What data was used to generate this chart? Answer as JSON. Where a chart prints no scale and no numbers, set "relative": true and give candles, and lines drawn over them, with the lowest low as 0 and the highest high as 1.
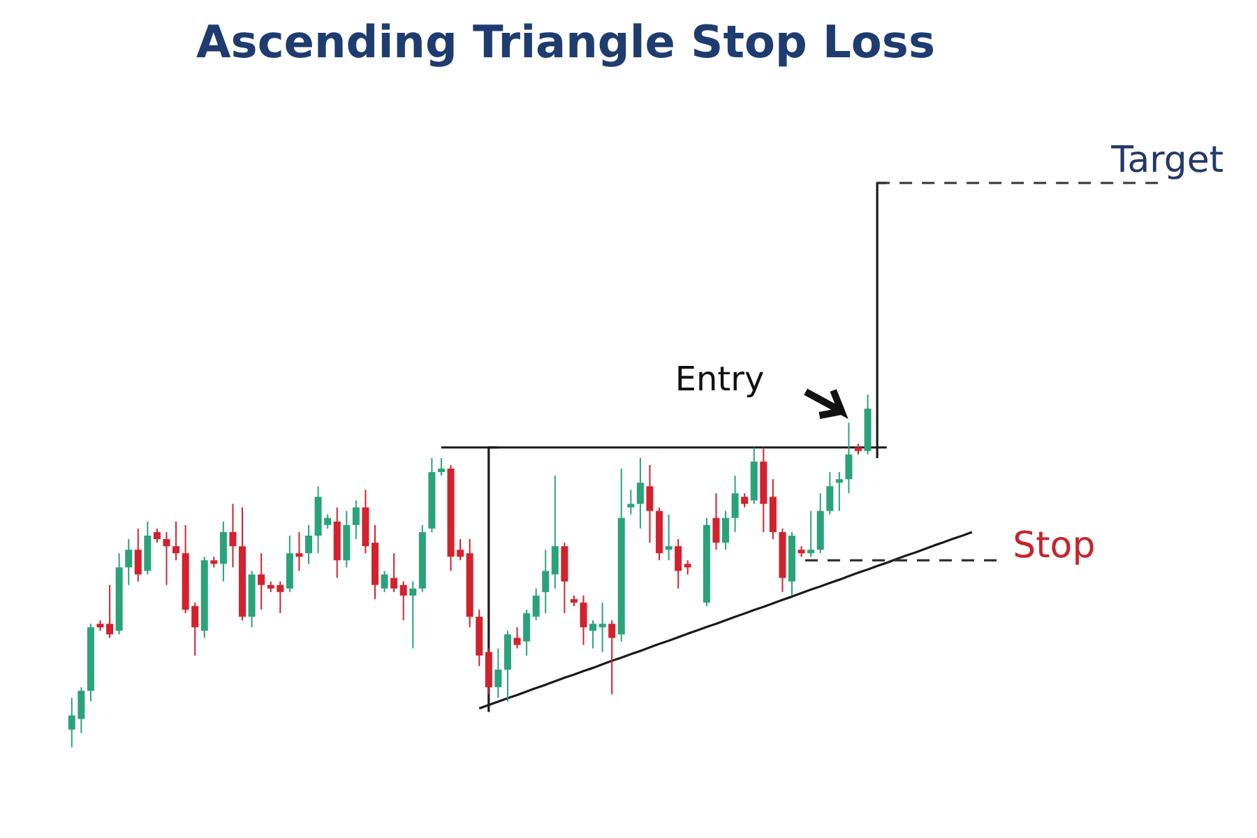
{
  "chart_data": {
    "type": "candlestick",
    "title": "Ascending Triangle Stop Loss",
    "relative": true,
    "tick_labels": false,
    "categories": [
      null,
      null,
      null,
      null,
      null,
      null,
      null,
      null,
      null,
      null,
      null,
      null,
      null,
      null,
      null,
      null,
      null,
      null,
      null,
      null,
      null,
      null,
      null,
      null,
      null,
      null,
      null,
      null,
      null,
      null,
      null,
      null,
      null,
      null,
      null,
      null,
      null,
      null,
      null,
      null,
      null,
      null,
      null,
      null,
      null,
      null,
      null,
      null,
      null,
      null,
      null,
      null,
      null,
      null,
      null,
      null,
      null,
      null,
      null,
      null,
      null,
      null,
      null,
      null,
      null,
      null,
      null,
      null,
      null,
      null,
      null,
      null,
      null,
      null,
      null,
      null,
      null,
      null,
      null,
      null,
      null,
      null,
      null,
      null,
      null,
      null,
      null,
      null,
      null,
      null,
      null,
      null,
      null,
      null,
      null,
      null,
      null,
      null,
      null,
      null,
      null,
      null,
      null,
      null,
      null,
      null,
      null,
      null,
      null,
      null,
      null,
      null,
      null,
      null,
      null,
      null
    ],
    "ohlc": [
      [
        0.05,
        0.14,
        0,
        0.09
      ],
      [
        0.08,
        0.17,
        0.04,
        0.16
      ],
      [
        0.16,
        0.35,
        0.13,
        0.34
      ],
      [
        0.35,
        0.36,
        0.33,
        0.34
      ],
      [
        0.35,
        0.46,
        0.31,
        0.32
      ],
      [
        0.33,
        0.55,
        0.32,
        0.51
      ],
      [
        0.51,
        0.59,
        0.46,
        0.56
      ],
      [
        0.56,
        0.62,
        0.47,
        0.49
      ],
      [
        0.5,
        0.64,
        0.49,
        0.6
      ],
      [
        0.61,
        0.62,
        0.58,
        0.59
      ],
      [
        0.59,
        0.61,
        0.46,
        0.57
      ],
      [
        0.57,
        0.64,
        0.53,
        0.55
      ],
      [
        0.55,
        0.63,
        0.38,
        0.39
      ],
      [
        0.4,
        0.41,
        0.26,
        0.34
      ],
      [
        0.33,
        0.54,
        0.31,
        0.53
      ],
      [
        0.53,
        0.54,
        0.51,
        0.52
      ],
      [
        0.52,
        0.64,
        0.47,
        0.61
      ],
      [
        0.61,
        0.69,
        0.51,
        0.57
      ],
      [
        0.57,
        0.68,
        0.36,
        0.37
      ],
      [
        0.37,
        0.5,
        0.34,
        0.49
      ],
      [
        0.49,
        0.55,
        0.39,
        0.46
      ],
      [
        0.46,
        0.47,
        0.44,
        0.45
      ],
      [
        0.46,
        0.47,
        0.38,
        0.44
      ],
      [
        0.45,
        0.6,
        0.44,
        0.55
      ],
      [
        0.55,
        0.61,
        0.5,
        0.54
      ],
      [
        0.55,
        0.63,
        0.52,
        0.6
      ],
      [
        0.6,
        0.74,
        0.55,
        0.71
      ],
      [
        0.63,
        0.66,
        0.62,
        0.65
      ],
      [
        0.64,
        0.68,
        0.48,
        0.53
      ],
      [
        0.53,
        0.67,
        0.51,
        0.63
      ],
      [
        0.63,
        0.7,
        0.59,
        0.68
      ],
      [
        0.68,
        0.73,
        0.55,
        0.57
      ],
      [
        0.58,
        0.63,
        0.42,
        0.46
      ],
      [
        0.45,
        0.5,
        0.44,
        0.49
      ],
      [
        0.48,
        0.55,
        0.44,
        0.45
      ],
      [
        0.46,
        0.47,
        0.36,
        0.43
      ],
      [
        0.43,
        0.47,
        0.28,
        0.45
      ],
      [
        0.45,
        0.63,
        0.44,
        0.61
      ],
      [
        0.62,
        0.82,
        0.61,
        0.78
      ],
      [
        0.78,
        0.82,
        0.77,
        0.79
      ],
      [
        0.79,
        0.8,
        0.5,
        0.54
      ],
      [
        0.56,
        0.59,
        0.53,
        0.54
      ],
      [
        0.55,
        0.59,
        0.34,
        0.37
      ],
      [
        0.37,
        0.39,
        0.23,
        0.26
      ],
      [
        0.27,
        0.28,
        0.15,
        0.17
      ],
      [
        0.17,
        0.28,
        0.14,
        0.22
      ],
      [
        0.22,
        0.33,
        0.13,
        0.32
      ],
      [
        0.31,
        0.34,
        0.28,
        0.29
      ],
      [
        0.3,
        0.39,
        0.26,
        0.38
      ],
      [
        0.37,
        0.45,
        0.36,
        0.43
      ],
      [
        0.44,
        0.56,
        0.38,
        0.5
      ],
      [
        0.49,
        0.77,
        0.45,
        0.57
      ],
      [
        0.57,
        0.58,
        0.38,
        0.47
      ],
      [
        0.42,
        0.43,
        0.4,
        0.41
      ],
      [
        0.41,
        0.43,
        0.29,
        0.34
      ],
      [
        0.33,
        0.36,
        0.28,
        0.35
      ],
      [
        0.34,
        0.41,
        0.27,
        0.35
      ],
      [
        0.35,
        0.36,
        0.15,
        0.31
      ],
      [
        0.32,
        0.79,
        0.3,
        0.65
      ],
      [
        0.68,
        0.73,
        0.66,
        0.69
      ],
      [
        0.69,
        0.82,
        0.62,
        0.75
      ],
      [
        0.74,
        0.8,
        0.58,
        0.67
      ],
      [
        0.67,
        0.68,
        0.53,
        0.55
      ],
      [
        0.56,
        0.66,
        0.53,
        0.57
      ],
      [
        0.57,
        0.59,
        0.45,
        0.5
      ],
      [
        0.52,
        0.53,
        0.49,
        0.51
      ],
      null,
      [
        0.41,
        0.65,
        0.4,
        0.63
      ],
      [
        0.65,
        0.72,
        0.56,
        0.58
      ],
      [
        0.58,
        0.67,
        0.56,
        0.65
      ],
      [
        0.65,
        0.77,
        0.61,
        0.72
      ],
      [
        0.71,
        0.72,
        0.68,
        0.69
      ],
      [
        0.7,
        0.85,
        0.69,
        0.81
      ],
      [
        0.81,
        0.85,
        0.61,
        0.69
      ],
      [
        0.71,
        0.76,
        0.59,
        0.61
      ],
      [
        0.61,
        0.62,
        0.44,
        0.48
      ],
      [
        0.47,
        0.61,
        0.43,
        0.6
      ],
      [
        0.56,
        0.57,
        0.54,
        0.55
      ],
      [
        0.55,
        0.67,
        0.54,
        0.56
      ],
      [
        0.56,
        0.72,
        0.55,
        0.67
      ],
      [
        0.67,
        0.78,
        0.66,
        0.74
      ],
      [
        0.75,
        0.78,
        0.67,
        0.76
      ],
      [
        0.76,
        0.92,
        0.72,
        0.83
      ],
      [
        0.85,
        0.86,
        0.83,
        0.84
      ],
      [
        0.84,
        1,
        0.83,
        0.96
      ],
      null,
      null,
      null,
      null,
      null,
      null,
      null,
      null,
      null,
      null,
      null,
      null,
      null,
      null,
      null,
      null,
      null,
      null,
      null,
      null,
      null,
      null,
      null,
      null,
      null,
      null,
      null,
      null,
      null,
      null,
      null
    ],
    "colors": [
      "#2aa37a",
      "#2aa37a",
      "#2aa37a",
      "#d3212d",
      "#d3212d",
      "#2aa37a",
      "#2aa37a",
      "#d3212d",
      "#2aa37a",
      "#d3212d",
      "#d3212d",
      "#d3212d",
      "#d3212d",
      "#d3212d",
      "#2aa37a",
      "#d3212d",
      "#2aa37a",
      "#d3212d",
      "#d3212d",
      "#2aa37a",
      "#d3212d",
      "#d3212d",
      "#d3212d",
      "#2aa37a",
      "#d3212d",
      "#2aa37a",
      "#2aa37a",
      "#2aa37a",
      "#d3212d",
      "#2aa37a",
      "#2aa37a",
      "#d3212d",
      "#d3212d",
      "#2aa37a",
      "#d3212d",
      "#d3212d",
      "#2aa37a",
      "#2aa37a",
      "#2aa37a",
      "#2aa37a",
      "#d3212d",
      "#d3212d",
      "#d3212d",
      "#d3212d",
      "#d3212d",
      "#2aa37a",
      "#2aa37a",
      "#d3212d",
      "#2aa37a",
      "#2aa37a",
      "#2aa37a",
      "#2aa37a",
      "#d3212d",
      "#d3212d",
      "#d3212d",
      "#2aa37a",
      "#2aa37a",
      "#d3212d",
      "#2aa37a",
      "#2aa37a",
      "#2aa37a",
      "#d3212d",
      "#d3212d",
      "#2aa37a",
      "#d3212d",
      "#d3212d",
      null,
      "#2aa37a",
      "#d3212d",
      "#2aa37a",
      "#2aa37a",
      "#d3212d",
      "#2aa37a",
      "#d3212d",
      "#d3212d",
      "#d3212d",
      "#2aa37a",
      "#d3212d",
      "#2aa37a",
      "#2aa37a",
      "#2aa37a",
      "#2aa37a",
      "#2aa37a",
      "#d3212d",
      "#2aa37a",
      null,
      null,
      null,
      null,
      null,
      null,
      null,
      null,
      null,
      null,
      null,
      null,
      null,
      null,
      null,
      null,
      null,
      null,
      null,
      null,
      null,
      null,
      null,
      null,
      null,
      null,
      null,
      null,
      null,
      null,
      null
    ],
    "series": [
      {
        "type": "line",
        "color": "#1a1a1a",
        "line_style": "solid",
        "values": [
          null,
          null,
          null,
          null,
          null,
          null,
          null,
          null,
          null,
          null,
          null,
          null,
          null,
          null,
          null,
          null,
          null,
          null,
          null,
          null,
          null,
          null,
          null,
          null,
          null,
          null,
          null,
          null,
          null,
          null,
          null,
          null,
          null,
          null,
          null,
          null,
          null,
          null,
          null,
          0.85,
          0.85,
          0.85,
          0.85,
          0.85,
          0.85,
          0.85,
          0.85,
          0.85,
          0.85,
          0.85,
          0.85,
          0.85,
          0.85,
          0.85,
          0.85,
          0.85,
          0.85,
          0.85,
          0.85,
          0.85,
          0.85,
          0.85,
          0.85,
          0.85,
          0.85,
          0.85,
          0.85,
          0.85,
          0.85,
          0.85,
          0.85,
          0.85,
          0.85,
          0.85,
          0.85,
          0.85,
          0.85,
          0.85,
          0.85,
          0.85,
          0.85,
          0.85,
          0.85,
          0.85,
          0.85,
          0.85,
          0.85,
          null,
          null,
          null,
          null,
          null,
          null,
          null,
          null,
          null,
          null,
          null,
          null,
          null,
          null,
          null,
          null,
          null,
          null,
          null,
          null,
          null,
          null,
          null,
          null,
          null,
          null,
          null,
          null,
          null
        ]
      },
      {
        "type": "line",
        "color": "#1a1a1a",
        "line_style": "solid",
        "values": [
          null,
          null,
          null,
          null,
          null,
          null,
          null,
          null,
          null,
          null,
          null,
          null,
          null,
          null,
          null,
          null,
          null,
          null,
          null,
          null,
          null,
          null,
          null,
          null,
          null,
          null,
          null,
          null,
          null,
          null,
          null,
          null,
          null,
          null,
          null,
          null,
          null,
          null,
          null,
          null,
          null,
          null,
          null,
          0.11,
          0.12,
          0.129,
          0.139,
          0.148,
          0.158,
          0.168,
          0.177,
          0.187,
          0.197,
          0.206,
          0.216,
          0.225,
          0.235,
          0.245,
          0.254,
          0.264,
          0.273,
          0.283,
          0.293,
          0.302,
          0.312,
          0.322,
          0.331,
          0.341,
          0.35,
          0.36,
          0.37,
          0.379,
          0.389,
          0.398,
          0.408,
          0.418,
          0.427,
          0.437,
          0.447,
          0.456,
          0.466,
          0.475,
          0.485,
          0.495,
          0.504,
          0.514,
          0.523,
          0.533,
          0.543,
          0.552,
          0.562,
          0.572,
          0.581,
          0.591,
          0.6,
          0.61,
          null,
          null,
          null,
          null,
          null,
          null,
          null,
          null,
          null,
          null,
          null,
          null,
          null,
          null,
          null,
          null,
          null,
          null,
          null,
          null
        ]
      },
      {
        "type": "step",
        "color": "#1a1a1a",
        "line_style": "solid",
        "values": [
          null,
          null,
          null,
          null,
          null,
          null,
          null,
          null,
          null,
          null,
          null,
          null,
          null,
          null,
          null,
          null,
          null,
          null,
          null,
          null,
          null,
          null,
          null,
          null,
          null,
          null,
          null,
          null,
          null,
          null,
          null,
          null,
          null,
          null,
          null,
          null,
          null,
          null,
          null,
          null,
          null,
          null,
          null,
          null,
          0.1,
          0.85,
          null,
          null,
          null,
          null,
          null,
          null,
          null,
          null,
          null,
          null,
          null,
          null,
          null,
          null,
          null,
          null,
          null,
          null,
          null,
          null,
          null,
          null,
          null,
          null,
          null,
          null,
          null,
          null,
          null,
          null,
          null,
          null,
          null,
          null,
          null,
          null,
          null,
          null,
          null,
          null,
          null,
          null,
          null,
          null,
          null,
          null,
          null,
          null,
          null,
          null,
          null,
          null,
          null,
          null,
          null,
          null,
          null,
          null,
          null,
          null,
          null,
          null,
          null,
          null,
          null,
          null,
          null,
          null,
          null,
          null
        ]
      },
      {
        "type": "step",
        "color": "#1a1a1a",
        "line_style": "solid",
        "values": [
          null,
          null,
          null,
          null,
          null,
          null,
          null,
          null,
          null,
          null,
          null,
          null,
          null,
          null,
          null,
          null,
          null,
          null,
          null,
          null,
          null,
          null,
          null,
          null,
          null,
          null,
          null,
          null,
          null,
          null,
          null,
          null,
          null,
          null,
          null,
          null,
          null,
          null,
          null,
          null,
          null,
          null,
          null,
          null,
          null,
          null,
          null,
          null,
          null,
          null,
          null,
          null,
          null,
          null,
          null,
          null,
          null,
          null,
          null,
          null,
          null,
          null,
          null,
          null,
          null,
          null,
          null,
          null,
          null,
          null,
          null,
          null,
          null,
          null,
          null,
          null,
          null,
          null,
          null,
          null,
          null,
          null,
          null,
          null,
          null,
          0.82,
          1.6,
          null,
          null,
          null,
          null,
          null,
          null,
          null,
          null,
          null,
          null,
          null,
          null,
          null,
          null,
          null,
          null,
          null,
          null,
          null,
          null,
          null,
          null,
          null,
          null,
          null,
          null,
          null,
          null,
          null
        ]
      }
    ],
    "ref_lines": [
      {
        "axis": "y",
        "value": 1.6,
        "label": "Target",
        "line_style": "dashed",
        "color": "#333333"
      },
      {
        "axis": "y",
        "value": 0.53,
        "label": "Stop",
        "line_style": "dashed",
        "color": "#333333"
      }
    ],
    "annotations": [
      "Entry"
    ]
  }
}
